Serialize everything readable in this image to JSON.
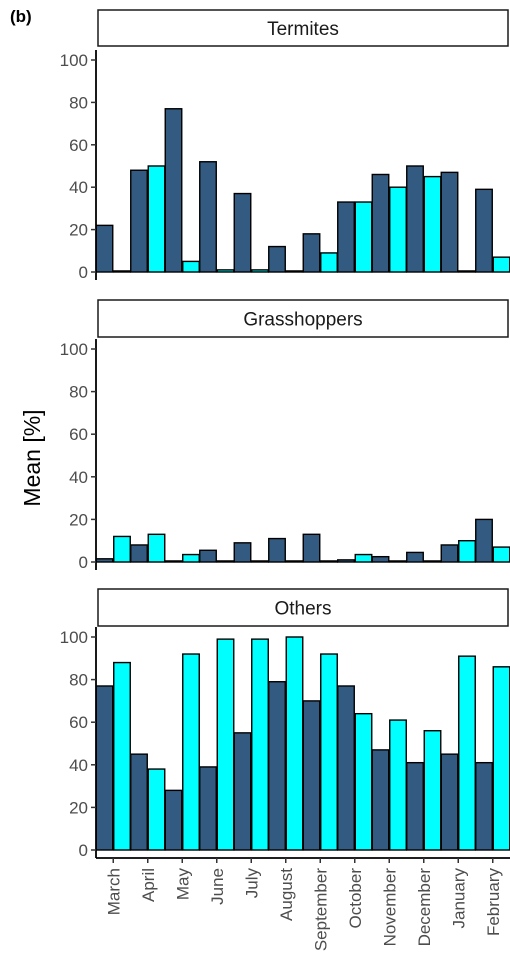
{
  "panel_label": "(b)",
  "chart_data": {
    "type": "bar",
    "ylabel": "Mean [%]",
    "ylim": [
      0,
      100
    ],
    "yticks": [
      0,
      20,
      40,
      60,
      80,
      100
    ],
    "categories": [
      "March",
      "April",
      "May",
      "June",
      "July",
      "August",
      "September",
      "October",
      "November",
      "December",
      "January",
      "February"
    ],
    "colors": {
      "dark": "#335a80",
      "cyan": "#00ffff",
      "outline": "#000000"
    },
    "grid": false,
    "legend": "none",
    "facets": [
      {
        "title": "Termites",
        "series": [
          {
            "color": "dark",
            "values": [
              22,
              48,
              77,
              52,
              37,
              12,
              18,
              33,
              46,
              50,
              47,
              39
            ]
          },
          {
            "color": "cyan",
            "values": [
              0.5,
              50,
              5,
              1,
              1,
              0.5,
              9,
              33,
              40,
              45,
              0.5,
              7
            ]
          }
        ]
      },
      {
        "title": "Grasshoppers",
        "series": [
          {
            "color": "dark",
            "values": [
              1.5,
              8,
              0.5,
              5.5,
              9,
              11,
              13,
              1,
              2.5,
              4.5,
              8,
              20
            ]
          },
          {
            "color": "cyan",
            "values": [
              12,
              13,
              3.5,
              0.5,
              0.5,
              0.5,
              0.5,
              3.5,
              0.5,
              0.5,
              10,
              7
            ]
          }
        ]
      },
      {
        "title": "Others",
        "series": [
          {
            "color": "dark",
            "values": [
              77,
              45,
              28,
              39,
              55,
              79,
              70,
              77,
              47,
              41,
              45,
              41
            ]
          },
          {
            "color": "cyan",
            "values": [
              88,
              38,
              92,
              99,
              99,
              100,
              92,
              64,
              61,
              56,
              91,
              86
            ]
          }
        ]
      }
    ]
  }
}
